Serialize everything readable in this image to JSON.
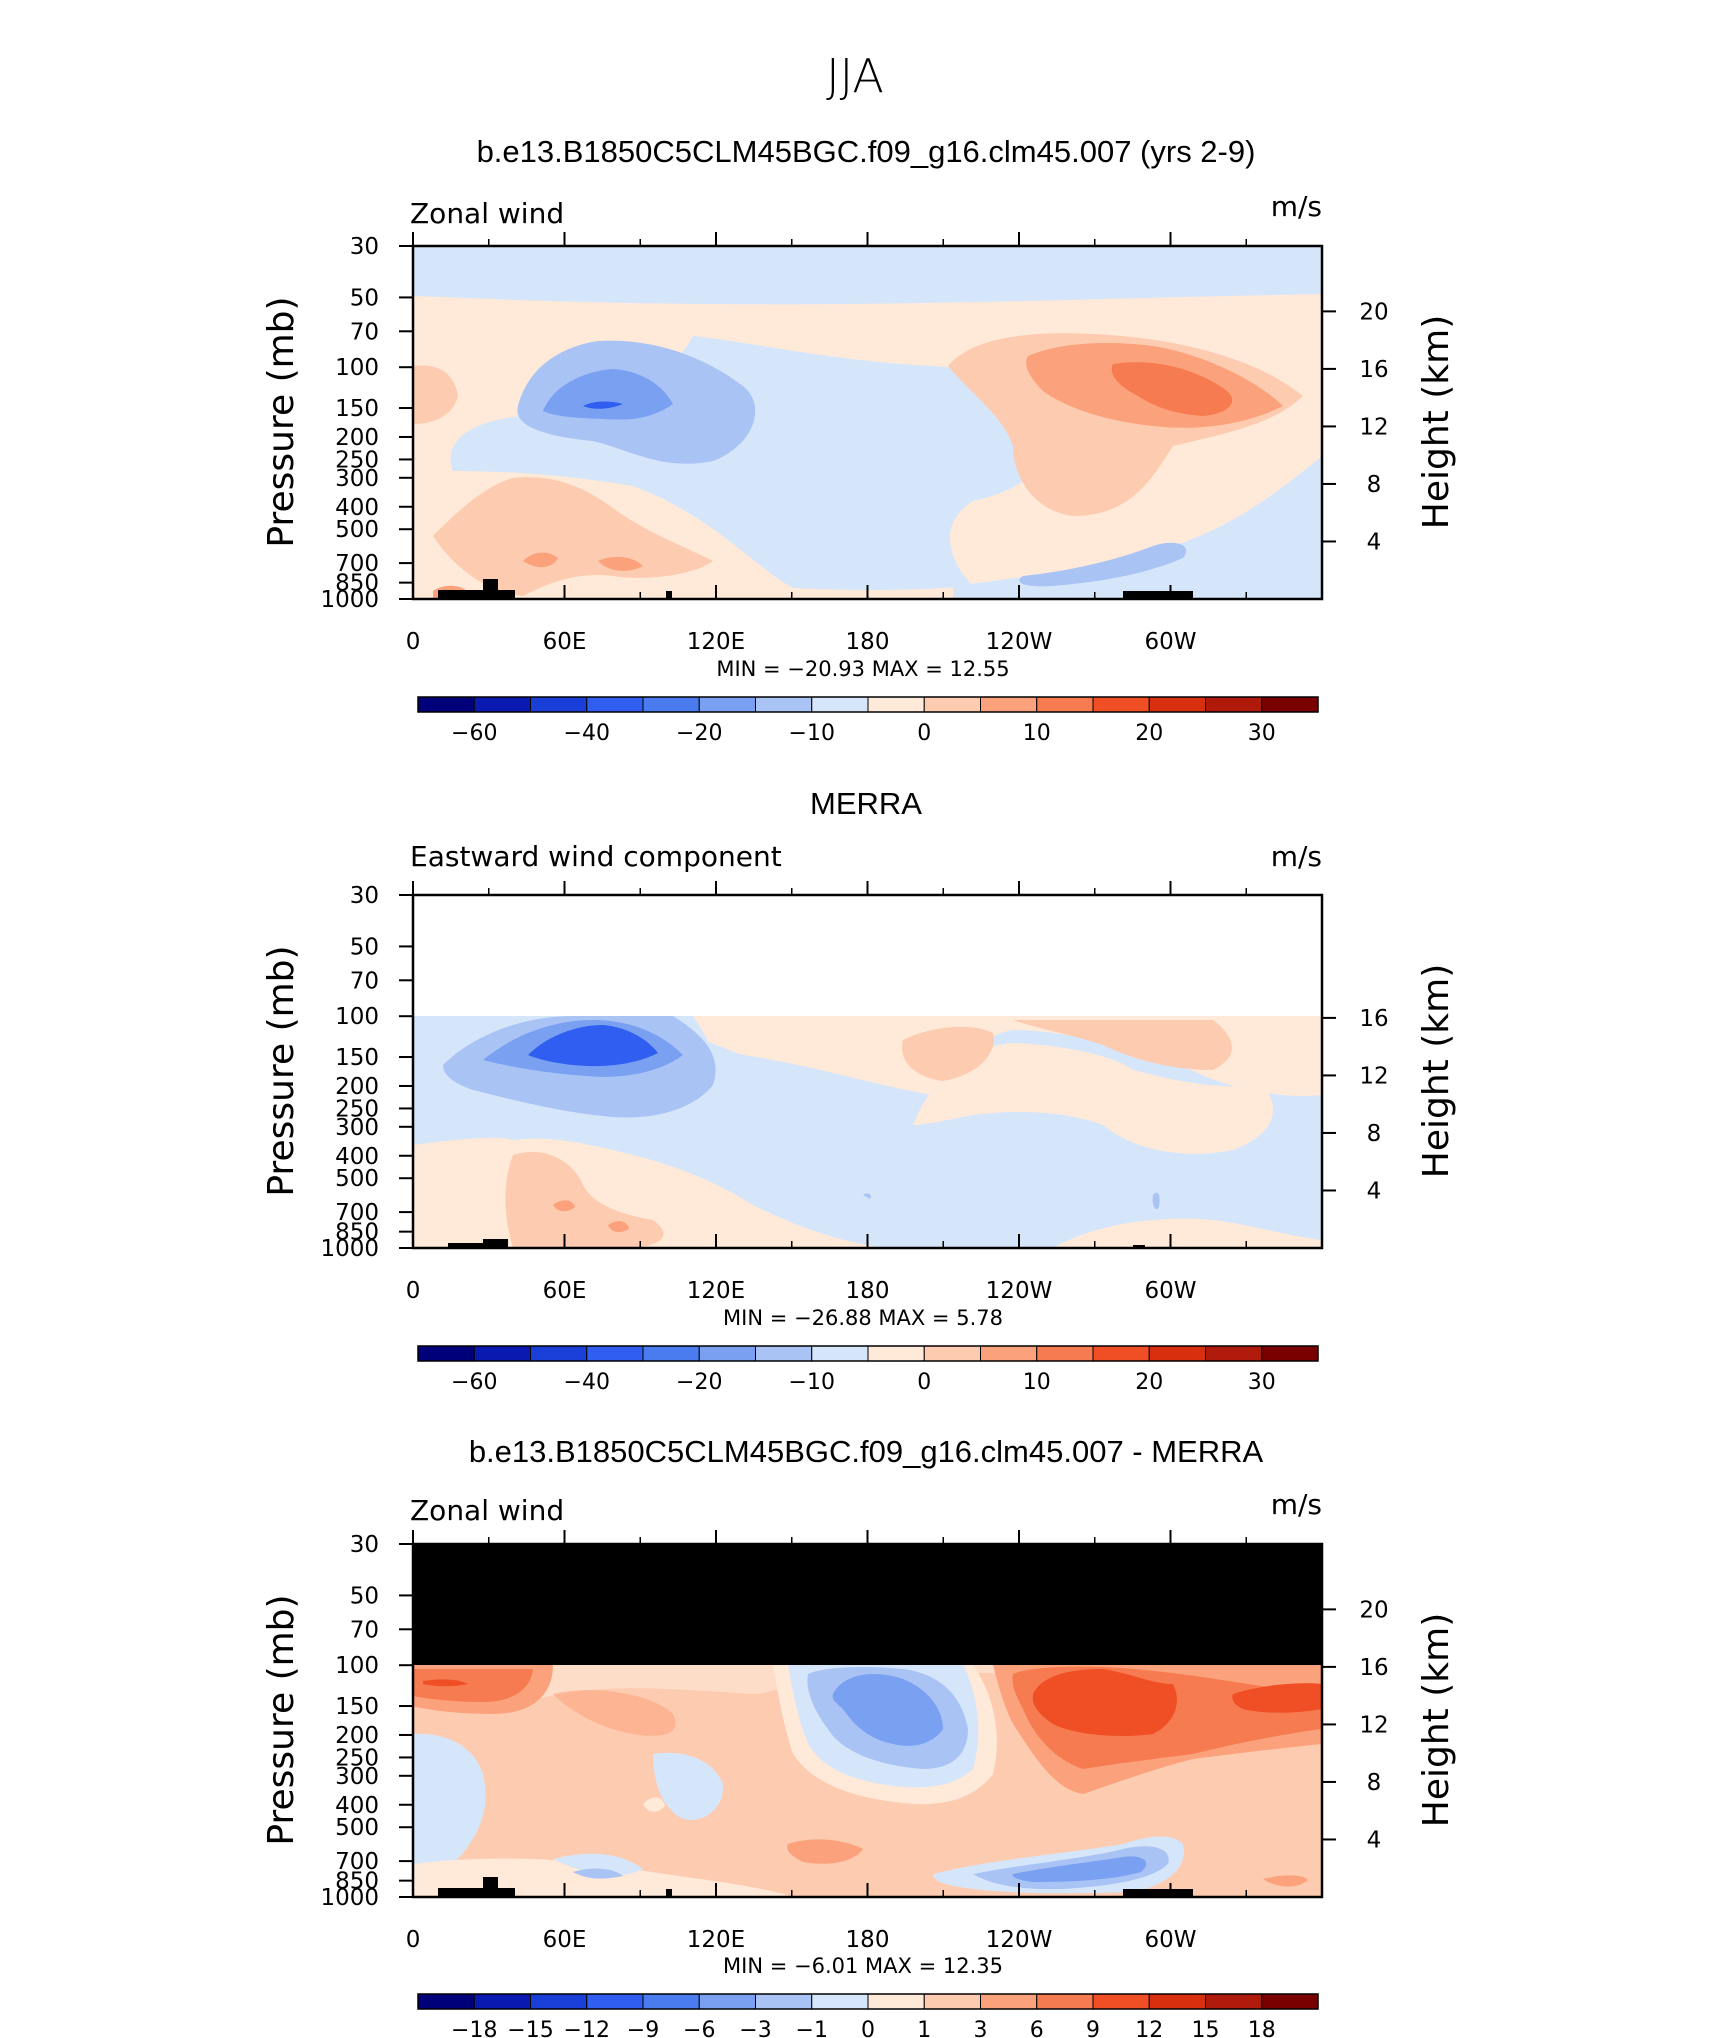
{
  "figure_title": "JJA",
  "chart_data": [
    {
      "type": "heatmap",
      "title": "b.e13.B1850C5CLM45BGC.f09_g16.clm45.007 (yrs 2-9)",
      "variable": "Zonal wind",
      "units": "m/s",
      "ylabel": "Pressure (mb)",
      "ylabel_right": "Height (km)",
      "x_ticks": [
        "0",
        "60E",
        "120E",
        "180",
        "120W",
        "60W"
      ],
      "y_ticks": [
        "30",
        "50",
        "70",
        "100",
        "150",
        "200",
        "250",
        "300",
        "400",
        "500",
        "700",
        "850",
        "1000"
      ],
      "height_ticks": [
        "20",
        "16",
        "12",
        "8",
        "4"
      ],
      "stats": "MIN = −20.93 MAX = 12.55",
      "colorbar_labels": [
        "−60",
        "−40",
        "−20",
        "−10",
        "0",
        "10",
        "20",
        "30"
      ],
      "colorbar_colors": [
        "#00007a",
        "#0a1ab0",
        "#1a3fd8",
        "#2f5ef0",
        "#4a7cf0",
        "#7aa0f2",
        "#a9c3f5",
        "#d6e6fa",
        "#ffe9d8",
        "#fdcbb0",
        "#fba27c",
        "#f77b50",
        "#f04e24",
        "#d8300e",
        "#b01a0a",
        "#7a0000"
      ]
    },
    {
      "type": "heatmap",
      "title": "MERRA",
      "variable": "Eastward wind component",
      "units": "m/s",
      "ylabel": "Pressure (mb)",
      "ylabel_right": "Height (km)",
      "x_ticks": [
        "0",
        "60E",
        "120E",
        "180",
        "120W",
        "60W"
      ],
      "y_ticks": [
        "30",
        "50",
        "70",
        "100",
        "150",
        "200",
        "250",
        "300",
        "400",
        "500",
        "700",
        "850",
        "1000"
      ],
      "height_ticks": [
        "16",
        "12",
        "8",
        "4"
      ],
      "stats": "MIN = −26.88 MAX = 5.78",
      "colorbar_labels": [
        "−60",
        "−40",
        "−20",
        "−10",
        "0",
        "10",
        "20",
        "30"
      ],
      "colorbar_colors": [
        "#00007a",
        "#0a1ab0",
        "#1a3fd8",
        "#2f5ef0",
        "#4a7cf0",
        "#7aa0f2",
        "#a9c3f5",
        "#d6e6fa",
        "#ffe9d8",
        "#fdcbb0",
        "#fba27c",
        "#f77b50",
        "#f04e24",
        "#d8300e",
        "#b01a0a",
        "#7a0000"
      ]
    },
    {
      "type": "heatmap",
      "title": "b.e13.B1850C5CLM45BGC.f09_g16.clm45.007 - MERRA",
      "variable": "Zonal wind",
      "units": "m/s",
      "ylabel": "Pressure (mb)",
      "ylabel_right": "Height (km)",
      "x_ticks": [
        "0",
        "60E",
        "120E",
        "180",
        "120W",
        "60W"
      ],
      "y_ticks": [
        "30",
        "50",
        "70",
        "100",
        "150",
        "200",
        "250",
        "300",
        "400",
        "500",
        "700",
        "850",
        "1000"
      ],
      "height_ticks": [
        "20",
        "16",
        "12",
        "8",
        "4"
      ],
      "stats": "MIN = −6.01 MAX = 12.35",
      "colorbar_labels": [
        "−18",
        "−15",
        "−12",
        "−9",
        "−6",
        "−3",
        "−1",
        "0",
        "1",
        "3",
        "6",
        "9",
        "12",
        "15",
        "18"
      ],
      "colorbar_colors": [
        "#00007a",
        "#0a1ab0",
        "#1a3fd8",
        "#2f5ef0",
        "#4a7cf0",
        "#7aa0f2",
        "#a9c3f5",
        "#d6e6fa",
        "#ffe9d8",
        "#fdcbb0",
        "#fba27c",
        "#f77b50",
        "#f04e24",
        "#d8300e",
        "#b01a0a",
        "#7a0000"
      ]
    }
  ]
}
